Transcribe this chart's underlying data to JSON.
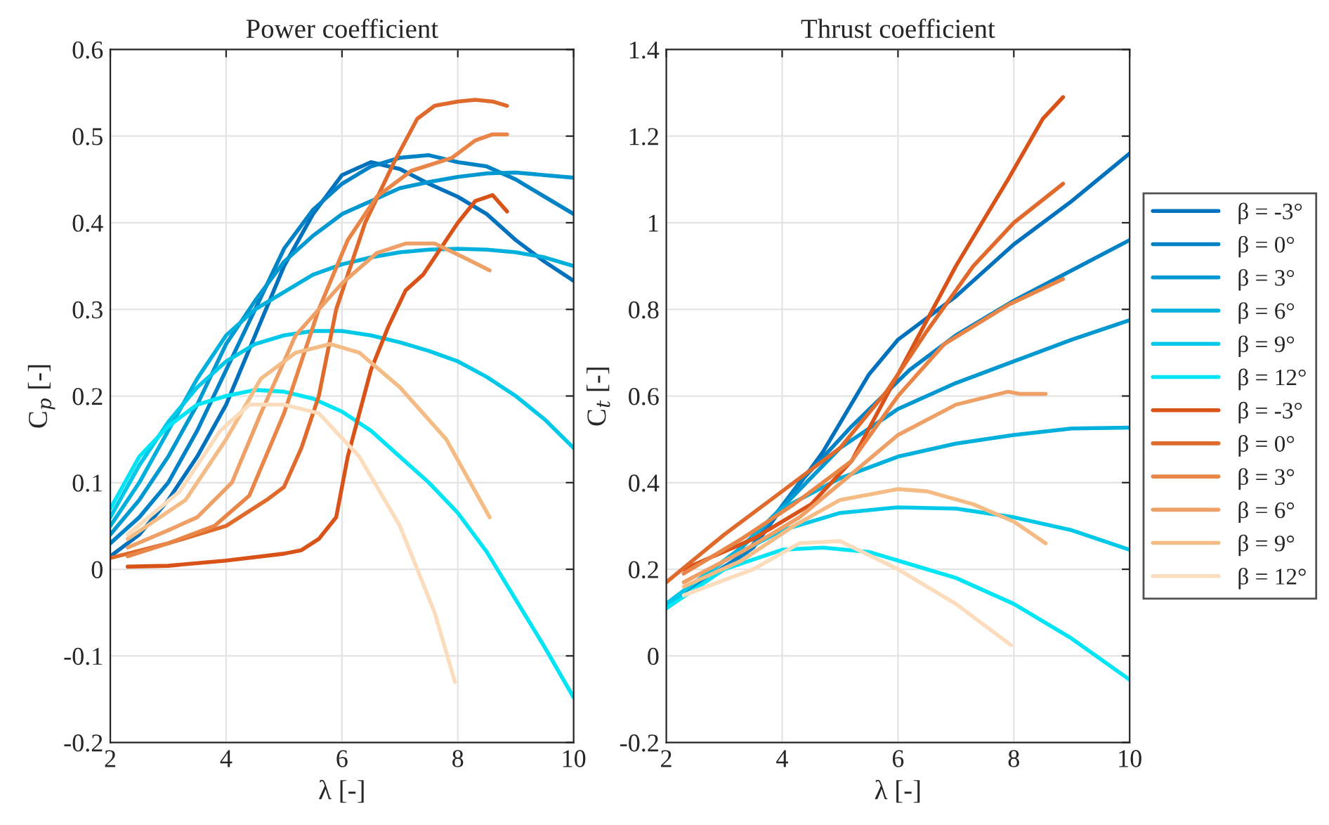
{
  "chart_data": [
    {
      "type": "line",
      "title": "Power coefficient",
      "xlabel": "λ [-]",
      "ylabel": "C$_{p}$ [-]",
      "xlim": [
        2,
        10
      ],
      "ylim": [
        -0.2,
        0.6
      ],
      "xticks": [
        2,
        4,
        6,
        8,
        10
      ],
      "yticks": [
        -0.2,
        -0.1,
        0,
        0.1,
        0.2,
        0.3,
        0.4,
        0.5,
        0.6
      ],
      "grid": true,
      "legend": false,
      "series": [
        {
          "color": "#0072bd",
          "x": [
            2,
            2.5,
            3,
            3.5,
            4,
            4.5,
            5,
            5.5,
            6,
            6.5,
            7,
            7.5,
            8,
            8.5,
            9,
            9.5,
            10
          ],
          "values": [
            0.015,
            0.04,
            0.08,
            0.13,
            0.19,
            0.27,
            0.35,
            0.41,
            0.455,
            0.47,
            0.462,
            0.445,
            0.43,
            0.41,
            0.38,
            0.355,
            0.333
          ]
        },
        {
          "color": "#0083c6",
          "x": [
            2,
            2.5,
            3,
            3.5,
            4,
            4.5,
            5,
            5.5,
            6,
            6.5,
            7,
            7.5,
            8,
            8.5,
            9,
            9.5,
            10
          ],
          "values": [
            0.03,
            0.06,
            0.1,
            0.16,
            0.23,
            0.3,
            0.37,
            0.415,
            0.445,
            0.465,
            0.475,
            0.478,
            0.47,
            0.465,
            0.45,
            0.43,
            0.41
          ]
        },
        {
          "color": "#0098d0",
          "x": [
            2,
            2.5,
            3,
            3.5,
            4,
            4.5,
            5,
            5.5,
            6,
            6.5,
            7,
            7.5,
            8,
            8.5,
            9,
            9.5,
            10
          ],
          "values": [
            0.04,
            0.08,
            0.13,
            0.19,
            0.26,
            0.31,
            0.355,
            0.385,
            0.41,
            0.425,
            0.44,
            0.447,
            0.453,
            0.457,
            0.458,
            0.455,
            0.452
          ]
        },
        {
          "color": "#00b0dc",
          "x": [
            2,
            2.5,
            3,
            3.5,
            4,
            4.5,
            5,
            5.5,
            6,
            6.5,
            7,
            7.5,
            8,
            8.5,
            9,
            9.5,
            10
          ],
          "values": [
            0.05,
            0.1,
            0.16,
            0.22,
            0.27,
            0.3,
            0.32,
            0.34,
            0.352,
            0.36,
            0.366,
            0.369,
            0.37,
            0.369,
            0.366,
            0.36,
            0.35
          ]
        },
        {
          "color": "#00c8e8",
          "x": [
            2,
            2.5,
            3,
            3.5,
            4,
            4.5,
            5,
            5.5,
            6,
            6.5,
            7,
            7.5,
            8,
            8.5,
            9,
            9.5,
            10
          ],
          "values": [
            0.06,
            0.12,
            0.17,
            0.21,
            0.24,
            0.26,
            0.27,
            0.275,
            0.275,
            0.27,
            0.262,
            0.252,
            0.24,
            0.222,
            0.2,
            0.173,
            0.14
          ]
        },
        {
          "color": "#00e5f5",
          "x": [
            2,
            2.5,
            3,
            3.5,
            4,
            4.5,
            5,
            5.5,
            6,
            6.5,
            7,
            7.5,
            8,
            8.5,
            9,
            9.5,
            10
          ],
          "values": [
            0.07,
            0.13,
            0.165,
            0.19,
            0.2,
            0.207,
            0.205,
            0.197,
            0.182,
            0.16,
            0.13,
            0.1,
            0.065,
            0.02,
            -0.035,
            -0.09,
            -0.148
          ]
        },
        {
          "color": "#d95319",
          "x": [
            2.3,
            3,
            4,
            5,
            5.3,
            5.6,
            5.9,
            6.1,
            6.5,
            6.8,
            7.1,
            7.4,
            8,
            8.3,
            8.6,
            8.85
          ],
          "values": [
            0.003,
            0.004,
            0.01,
            0.018,
            0.022,
            0.035,
            0.06,
            0.13,
            0.23,
            0.28,
            0.322,
            0.34,
            0.4,
            0.425,
            0.432,
            0.413
          ]
        },
        {
          "color": "#e06a2c",
          "x": [
            2,
            3,
            4,
            4.7,
            5,
            5.3,
            5.6,
            5.9,
            6.4,
            6.9,
            7.3,
            7.6,
            8,
            8.3,
            8.6,
            8.85
          ],
          "values": [
            0.013,
            0.03,
            0.05,
            0.08,
            0.095,
            0.14,
            0.2,
            0.3,
            0.4,
            0.47,
            0.52,
            0.535,
            0.54,
            0.542,
            0.54,
            0.535
          ]
        },
        {
          "color": "#e88547",
          "x": [
            2.3,
            3,
            3.8,
            4.4,
            5,
            5.6,
            6.1,
            6.6,
            7.2,
            7.9,
            8.3,
            8.6,
            8.85
          ],
          "values": [
            0.015,
            0.03,
            0.05,
            0.085,
            0.18,
            0.3,
            0.38,
            0.43,
            0.46,
            0.475,
            0.495,
            0.502,
            0.502
          ]
        },
        {
          "color": "#eea066",
          "x": [
            2.3,
            3,
            3.5,
            4.1,
            4.6,
            5.2,
            6,
            6.6,
            7.1,
            7.6,
            8.1,
            8.55
          ],
          "values": [
            0.025,
            0.045,
            0.06,
            0.1,
            0.18,
            0.27,
            0.33,
            0.365,
            0.376,
            0.376,
            0.36,
            0.345
          ]
        },
        {
          "color": "#f4bb85",
          "x": [
            2.3,
            3.3,
            4,
            4.6,
            5.2,
            5.8,
            6.3,
            7,
            7.8,
            8.55
          ],
          "values": [
            0.035,
            0.08,
            0.15,
            0.22,
            0.25,
            0.26,
            0.25,
            0.21,
            0.15,
            0.06
          ]
        },
        {
          "color": "#fbdcbc",
          "x": [
            2.3,
            3.2,
            3.9,
            4.4,
            5,
            5.6,
            6.3,
            7,
            7.6,
            7.95
          ],
          "values": [
            0.04,
            0.09,
            0.16,
            0.19,
            0.19,
            0.18,
            0.13,
            0.05,
            -0.05,
            -0.13
          ]
        }
      ]
    },
    {
      "type": "line",
      "title": "Thrust coefficient",
      "xlabel": "λ [-]",
      "ylabel": "C$_{t}$ [-]",
      "xlim": [
        2,
        10
      ],
      "ylim": [
        -0.2,
        1.4
      ],
      "xticks": [
        2,
        4,
        6,
        8,
        10
      ],
      "yticks": [
        -0.2,
        0,
        0.2,
        0.4,
        0.6,
        0.8,
        1,
        1.2,
        1.4
      ],
      "grid": true,
      "legend": "right",
      "series": [
        {
          "name": "β = -3°",
          "color": "#0072bd",
          "x": [
            2,
            3.5,
            4.7,
            5.5,
            6,
            7,
            8,
            9,
            10
          ],
          "values": [
            0.11,
            0.25,
            0.47,
            0.65,
            0.73,
            0.83,
            0.95,
            1.05,
            1.16
          ]
        },
        {
          "name": "β = 0°",
          "color": "#0083c6",
          "x": [
            2,
            3.4,
            4.3,
            5.2,
            6.2,
            7,
            8,
            9,
            10
          ],
          "values": [
            0.12,
            0.24,
            0.4,
            0.53,
            0.66,
            0.74,
            0.82,
            0.89,
            0.96
          ]
        },
        {
          "name": "β = 3°",
          "color": "#0098d0",
          "x": [
            2,
            3.3,
            4.2,
            5,
            6,
            7,
            8,
            9,
            10
          ],
          "values": [
            0.12,
            0.25,
            0.37,
            0.48,
            0.57,
            0.63,
            0.68,
            0.73,
            0.775
          ]
        },
        {
          "name": "β = 6°",
          "color": "#00b0dc",
          "x": [
            2,
            3.2,
            4,
            5,
            6,
            7,
            8,
            9,
            10
          ],
          "values": [
            0.12,
            0.24,
            0.34,
            0.41,
            0.46,
            0.49,
            0.51,
            0.525,
            0.527
          ]
        },
        {
          "name": "β = 9°",
          "color": "#00c8e8",
          "x": [
            2,
            3,
            4,
            5,
            6,
            7,
            8,
            9,
            10
          ],
          "values": [
            0.12,
            0.22,
            0.29,
            0.33,
            0.343,
            0.34,
            0.32,
            0.29,
            0.245
          ]
        },
        {
          "name": "β = 12°",
          "color": "#00e5f5",
          "x": [
            2,
            3,
            4,
            4.7,
            5.5,
            6,
            7,
            8,
            9,
            10
          ],
          "values": [
            0.11,
            0.2,
            0.245,
            0.25,
            0.24,
            0.22,
            0.18,
            0.12,
            0.04,
            -0.055
          ]
        },
        {
          "name": "β = -3°",
          "color": "#d95319",
          "x": [
            2.3,
            3.5,
            4.5,
            5.2,
            6,
            7,
            7.9,
            8.5,
            8.85
          ],
          "values": [
            0.2,
            0.27,
            0.35,
            0.45,
            0.65,
            0.9,
            1.1,
            1.24,
            1.29
          ]
        },
        {
          "name": "β = 0°",
          "color": "#e06a2c",
          "x": [
            2,
            3,
            4,
            5,
            5.8,
            6.5,
            7.3,
            8,
            8.85
          ],
          "values": [
            0.17,
            0.28,
            0.38,
            0.48,
            0.61,
            0.75,
            0.9,
            1.0,
            1.09
          ]
        },
        {
          "name": "β = 3°",
          "color": "#e88547",
          "x": [
            2.3,
            3.3,
            4.2,
            5.2,
            6,
            6.8,
            7.9,
            8.85
          ],
          "values": [
            0.19,
            0.27,
            0.35,
            0.45,
            0.6,
            0.72,
            0.81,
            0.87
          ]
        },
        {
          "name": "β = 6°",
          "color": "#eea066",
          "x": [
            2.3,
            3.3,
            4.3,
            5.2,
            6,
            7,
            7.9,
            8.1,
            8.55
          ],
          "values": [
            0.17,
            0.24,
            0.32,
            0.42,
            0.51,
            0.58,
            0.61,
            0.605,
            0.605
          ]
        },
        {
          "name": "β = 9°",
          "color": "#f4bb85",
          "x": [
            2.3,
            3.3,
            4.2,
            5,
            6,
            6.5,
            7.3,
            8,
            8.55
          ],
          "values": [
            0.16,
            0.22,
            0.3,
            0.36,
            0.385,
            0.38,
            0.35,
            0.31,
            0.26
          ]
        },
        {
          "name": "β = 12°",
          "color": "#fbdcbc",
          "x": [
            2.3,
            3.5,
            4.3,
            5,
            6,
            7,
            7.95
          ],
          "values": [
            0.14,
            0.2,
            0.26,
            0.265,
            0.2,
            0.12,
            0.025
          ]
        }
      ]
    }
  ]
}
